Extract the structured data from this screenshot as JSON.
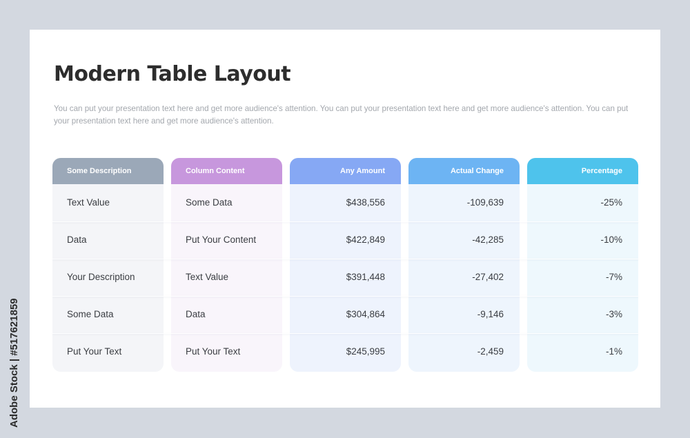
{
  "title": "Modern Table Layout",
  "description": "You can put your presentation text here and get more audience's attention. You can put your presentation text here and get more audience's attention. You can put your presentation text here and get more audience's attention.",
  "colors": {
    "header_1": "#9ba8b8",
    "header_2": "#c797dd",
    "header_3": "#86a8f4",
    "header_4": "#6db4f3",
    "header_5": "#4ec3ec"
  },
  "table": {
    "headers": [
      "Some Description",
      "Column Content",
      "Any Amount",
      "Actual Change",
      "Percentage"
    ],
    "rows": [
      [
        "Text Value",
        "Some Data",
        "$438,556",
        "-109,639",
        "-25%"
      ],
      [
        "Data",
        "Put Your Content",
        "$422,849",
        "-42,285",
        "-10%"
      ],
      [
        "Your Description",
        "Text Value",
        "$391,448",
        "-27,402",
        "-7%"
      ],
      [
        "Some Data",
        "Data",
        "$304,864",
        "-9,146",
        "-3%"
      ],
      [
        "Put Your Text",
        "Put Your Text",
        "$245,995",
        "-2,459",
        "-1%"
      ]
    ]
  },
  "side_credit": "Adobe Stock | #517621859"
}
